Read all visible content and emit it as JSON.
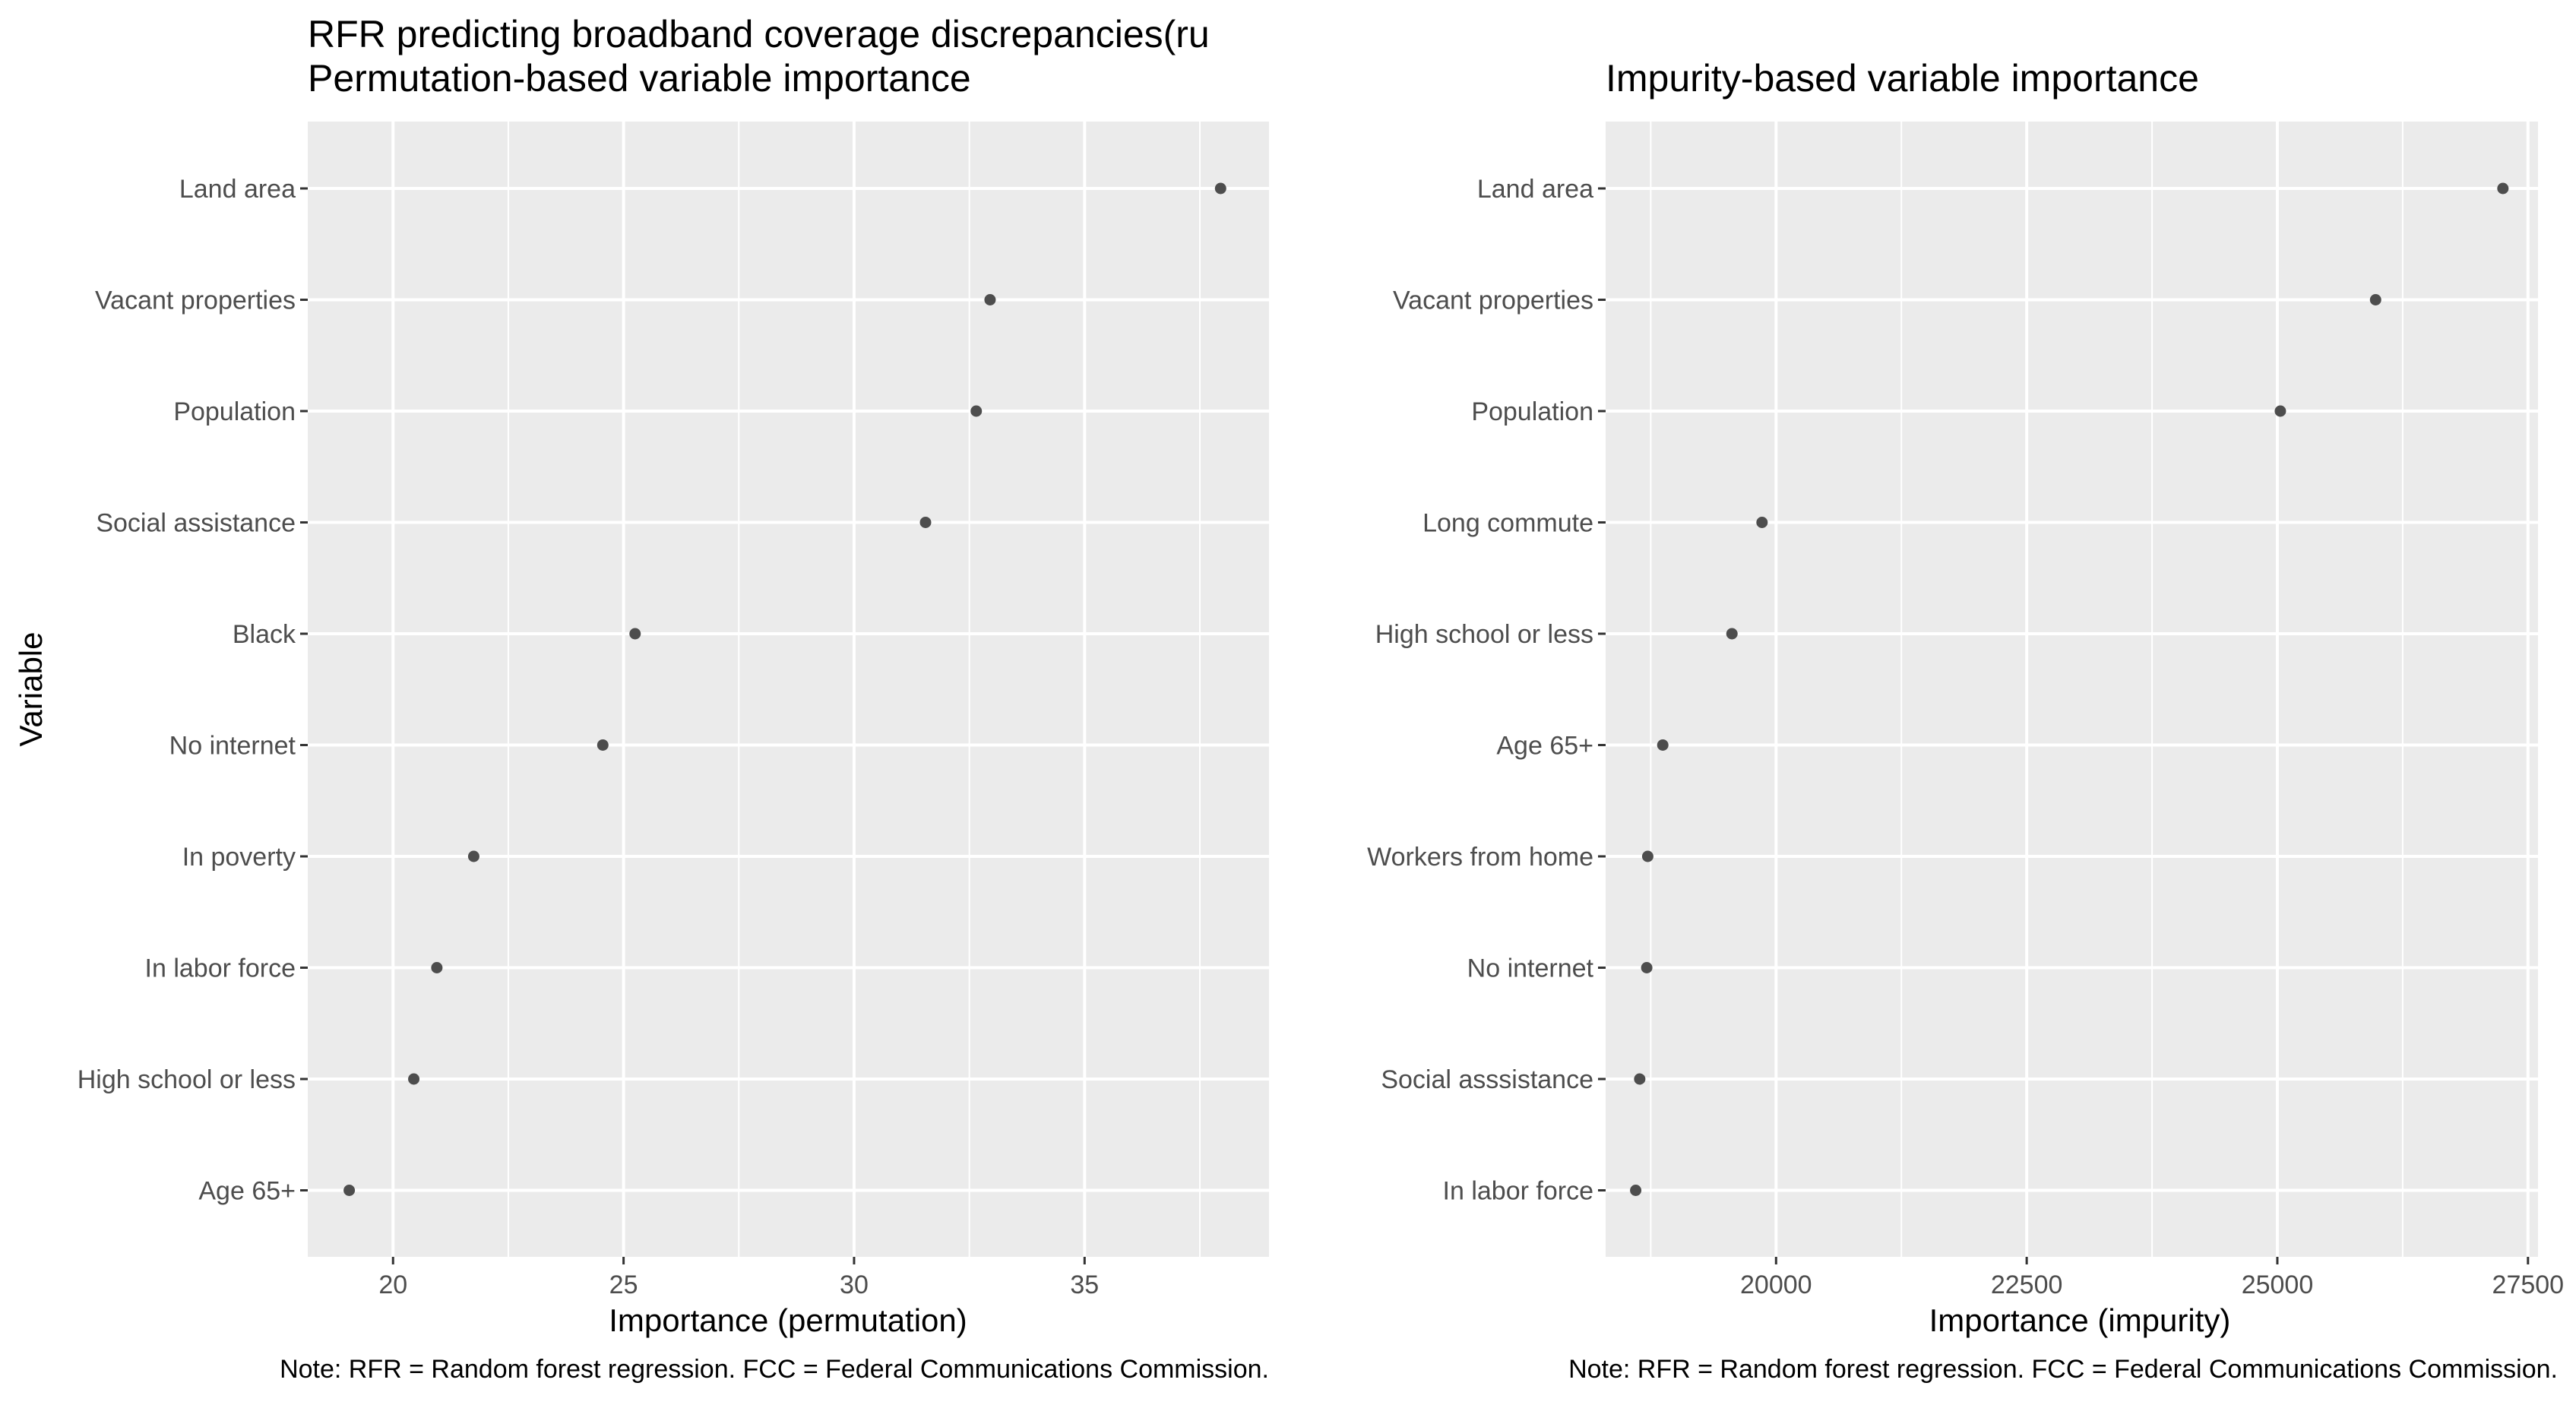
{
  "chart_data": [
    {
      "type": "scatter",
      "title": "RFR predicting broadband coverage discrepancies(ru",
      "subtitle": "Permutation-based variable importance",
      "xlabel": "Importance (permutation)",
      "ylabel": "Variable",
      "caption": "Note: RFR = Random forest regression. FCC = Federal Communications Commission.",
      "xlim": [
        18.15,
        39.0
      ],
      "xticks": [
        20,
        25,
        30,
        35
      ],
      "xtick_labels": [
        "20",
        "25",
        "30",
        "35"
      ],
      "grid": true,
      "categories": [
        "Land area",
        "Vacant properties",
        "Population",
        "Social assistance",
        "Black",
        "No internet",
        "In poverty",
        "In labor force",
        "High school or less",
        "Age 65+"
      ],
      "values": [
        37.95,
        32.95,
        32.65,
        31.55,
        25.25,
        24.55,
        21.75,
        20.95,
        20.45,
        19.05
      ]
    },
    {
      "type": "scatter",
      "title": "",
      "subtitle": "Impurity-based variable importance",
      "xlabel": "Importance (impurity)",
      "ylabel": "",
      "caption": "Note: RFR = Random forest regression. FCC = Federal Communications Commission.",
      "xlim": [
        18300,
        27600
      ],
      "xticks": [
        20000,
        22500,
        25000,
        27500
      ],
      "xtick_labels": [
        "20000",
        "22500",
        "25000",
        "27500"
      ],
      "grid": true,
      "categories": [
        "Land area",
        "Vacant properties",
        "Population",
        "Long commute",
        "High school or less",
        "Age 65+",
        "Workers from home",
        "No internet",
        "Social asssistance",
        "In labor force"
      ],
      "values": [
        27250,
        25980,
        25030,
        19860,
        19560,
        18870,
        18720,
        18710,
        18640,
        18600
      ]
    }
  ],
  "style": {
    "panel_background": "#ebebeb",
    "grid_color": "#ffffff",
    "point_color": "#4d4d4d",
    "tick_text_color": "#4d4d4d"
  }
}
